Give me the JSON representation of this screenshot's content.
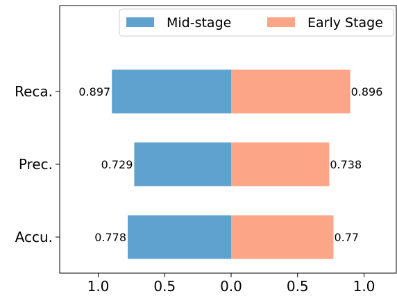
{
  "chart_data": {
    "type": "bar",
    "orientation": "horizontal-diverging",
    "categories": [
      "Reca.",
      "Prec.",
      "Accu."
    ],
    "series": [
      {
        "name": "Mid-stage",
        "values": [
          0.897,
          0.729,
          0.778
        ],
        "color": "#5fa2d0",
        "side": "left"
      },
      {
        "name": "Early Stage",
        "values": [
          0.896,
          0.738,
          0.77
        ],
        "color": "#fca587",
        "side": "right"
      }
    ],
    "data_labels": {
      "Mid-stage": [
        "0.897",
        "0.729",
        "0.778"
      ],
      "Early Stage": [
        "0.896",
        "0.738",
        "0.77"
      ]
    },
    "xlim": [
      -1.0,
      1.0
    ],
    "x_ticks": [
      -1.0,
      -0.5,
      0.0,
      0.5,
      1.0
    ],
    "x_tick_labels": [
      "1.0",
      "0.5",
      "0.0",
      "0.5",
      "1.0"
    ],
    "title": "",
    "xlabel": "",
    "ylabel": "",
    "grid": false,
    "legend": {
      "position": "top-right",
      "columns": 2
    }
  }
}
